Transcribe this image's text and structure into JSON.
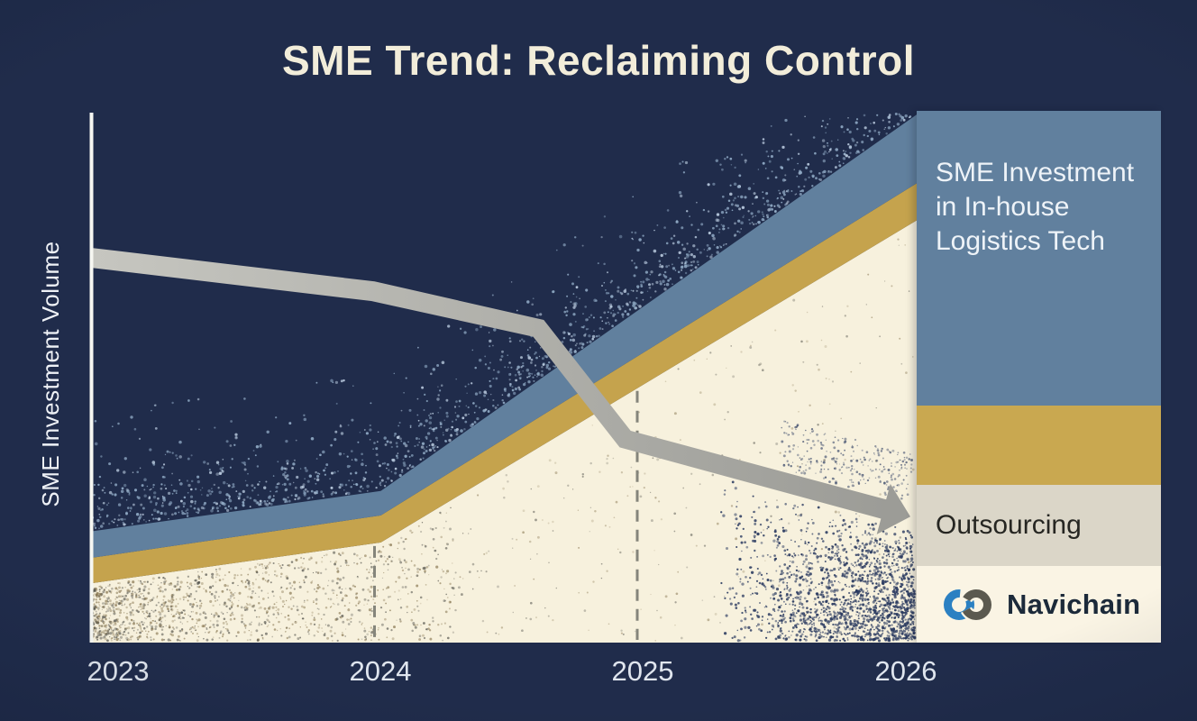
{
  "title": "SME Trend: Reclaiming Control",
  "y_axis_label": "SME Investment Volume",
  "x_axis_labels": [
    "2023",
    "2024",
    "2025",
    "2026"
  ],
  "legend": {
    "in_house": "SME Investment in In-house Logistics Tech",
    "outsourcing": "Outsourcing",
    "brand": "Navichain"
  },
  "colors": {
    "background": "#202c4b",
    "cream_area": "#f7f1dd",
    "gold_band": "#c5a34d",
    "blue_band": "#61809e",
    "legend_blue": "#61809e",
    "legend_gold": "#c9a850",
    "legend_gray": "#dbd6c8",
    "legend_cream": "#faf4e4",
    "gray_line_light": "#c6c6c0",
    "gray_line_dark": "#9c9c97",
    "dash_line": "#85857b",
    "axis_line": "#f6f7f2",
    "title_text": "#f2edda",
    "axis_text": "#dfe5ee",
    "outsourcing_text": "#262622",
    "brand_text": "#1c2a3a",
    "logo_blue": "#2b80c2",
    "logo_gray": "#5b594f",
    "stipple_light_1": "#b9cade",
    "stipple_light_2": "#8fa9c4",
    "stipple_olive": "#82704a",
    "stipple_slate": "#4a4a44",
    "stipple_navy": "#2a3a60"
  },
  "chart_data": {
    "type": "area",
    "title": "SME Trend: Reclaiming Control",
    "xlabel": "",
    "ylabel": "SME Investment Volume",
    "x_ticks": [
      "2023",
      "2024",
      "2025",
      "2026"
    ],
    "ylim": [
      0,
      100
    ],
    "grid": false,
    "legend_position": "right panel",
    "unit": "relative investment volume (0-100, estimated, axis unlabeled)",
    "series": [
      {
        "name": "SME Investment in In-house Logistics Tech",
        "style": "rising stacked area: cream base with gold and steel-blue strata",
        "values": {
          "2023": 22,
          "2024": 29,
          "2025": 63,
          "2026": 98
        }
      },
      {
        "name": "Outsourcing",
        "style": "thick gray declining arrow line",
        "values": {
          "2023": 72,
          "2024": 66,
          "2025": 38,
          "2026": 24
        }
      }
    ],
    "layer_edges": [
      {
        "name": "blue_band_top",
        "points": [
          [
            2022.9,
            21.0
          ],
          [
            2024.0,
            28.6
          ],
          [
            2026.05,
            100.0
          ]
        ]
      },
      {
        "name": "gold_band_top",
        "points": [
          [
            2022.9,
            16.0
          ],
          [
            2024.0,
            24.0
          ],
          [
            2026.05,
            87.0
          ]
        ]
      },
      {
        "name": "cream_area_top",
        "points": [
          [
            2022.9,
            11.2
          ],
          [
            2024.0,
            18.9
          ],
          [
            2026.05,
            80.0
          ]
        ]
      }
    ],
    "outsourcing_line": [
      [
        2022.9,
        72.6
      ],
      [
        2023.97,
        66.3
      ],
      [
        2024.6,
        59.3
      ],
      [
        2024.93,
        38.4
      ],
      [
        2025.92,
        25.1
      ]
    ],
    "dashed_drop_years": [
      2024,
      2025
    ]
  }
}
